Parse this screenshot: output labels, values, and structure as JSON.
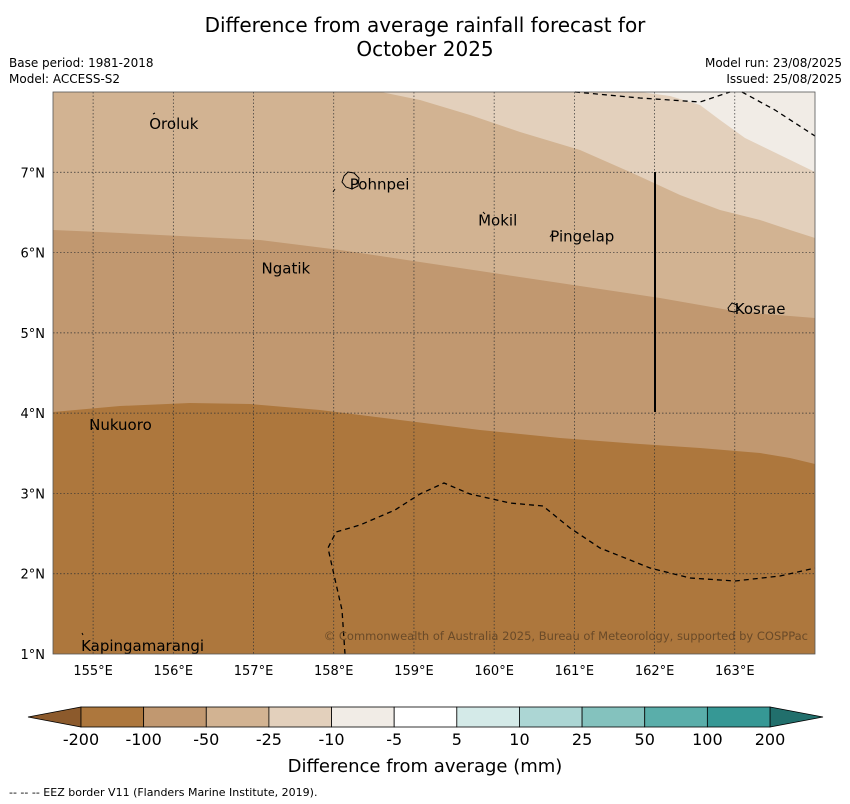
{
  "title": {
    "line1": "Difference from average rainfall forecast for",
    "line2": "October 2025"
  },
  "meta": {
    "base_period": "Base period: 1981-2018",
    "model": "Model: ACCESS-S2",
    "model_run": "Model run: 23/08/2025",
    "issued": "Issued: 25/08/2025"
  },
  "map": {
    "lon_range": [
      154.5,
      164.0
    ],
    "lat_range": [
      1.0,
      8.0
    ],
    "lon_ticks": [
      "155°E",
      "156°E",
      "157°E",
      "158°E",
      "159°E",
      "160°E",
      "161°E",
      "162°E",
      "163°E"
    ],
    "lat_ticks": [
      "1°N",
      "2°N",
      "3°N",
      "4°N",
      "5°N",
      "6°N",
      "7°N"
    ],
    "grid": true,
    "places": [
      {
        "name": "Oroluk",
        "lon": 155.7,
        "lat": 7.6
      },
      {
        "name": "Pohnpei",
        "lon": 158.2,
        "lat": 6.85
      },
      {
        "name": "Mokil",
        "lon": 159.8,
        "lat": 6.4
      },
      {
        "name": "Pingelap",
        "lon": 160.7,
        "lat": 6.2
      },
      {
        "name": "Ngatik",
        "lon": 157.1,
        "lat": 5.8
      },
      {
        "name": "Kosrae",
        "lon": 163.0,
        "lat": 5.3
      },
      {
        "name": "Nukuoro",
        "lon": 154.95,
        "lat": 3.85
      },
      {
        "name": "Kapingamarangi",
        "lon": 154.85,
        "lat": 1.1
      }
    ],
    "copyright": "© Commonwealth of Australia 2025, Bureau of Meteorology, supported by COSPPac"
  },
  "colors": {
    "bin_-200_-100": "#ad773d",
    "bin_-100_-50": "#c19870",
    "bin_-50_-25": "#d2b392",
    "bin_-25_-10": "#e3d0bc",
    "bin_-10_-5": "#f1ece6",
    "bin_-5_5": "#ffffff",
    "bin_5_10": "#d4eae8",
    "bin_10_25": "#acd6d4",
    "bin_25_50": "#84c2be",
    "bin_50_100": "#5aaeaa",
    "bin_100_200": "#369895",
    "under": "#8c5a2c",
    "over": "#216f6c"
  },
  "colorbar": {
    "labels": [
      "-200",
      "-100",
      "-50",
      "-25",
      "-10",
      "-5",
      "5",
      "10",
      "25",
      "50",
      "100",
      "200"
    ],
    "title": "Difference from average (mm)"
  },
  "footer": "--  --  -- EEZ border V11 (Flanders Marine Institute, 2019)."
}
